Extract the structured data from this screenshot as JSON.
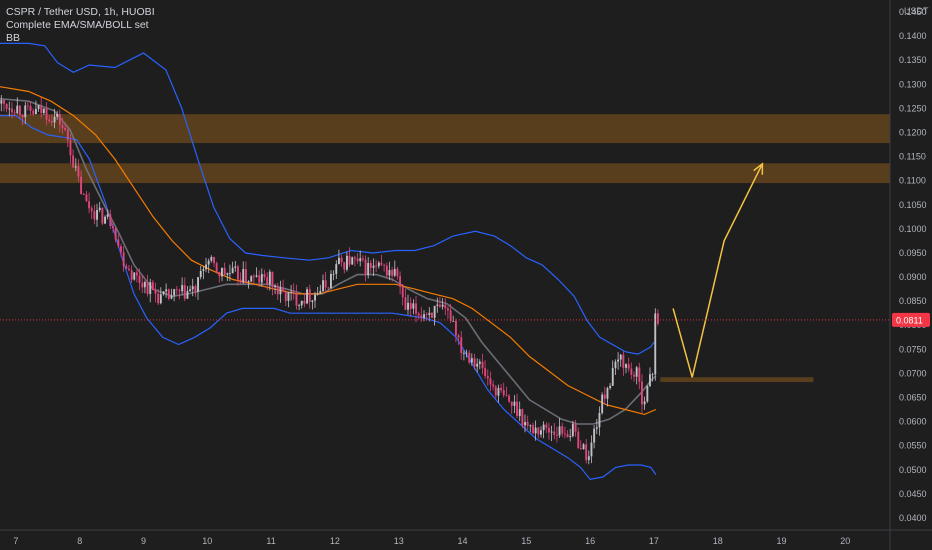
{
  "header": {
    "symbol_line": "CSPR / Tether USD, 1h, HUOBI",
    "indicator_line": "Complete EMA/SMA/BOLL set",
    "bb_line": "BB"
  },
  "price_axis": {
    "currency": "USDT",
    "last_price_label": "0.0811"
  },
  "colors": {
    "background": "#1e1e1e",
    "up_candle": "#c0c0c8",
    "down_candle": "#e0457b",
    "bollinger": "#2962ff",
    "ema_orange": "#f57c00",
    "sma_gray": "#787b86",
    "zone": "#8b5a1e",
    "forecast_arrow": "#f5c242",
    "last_price": "#f23645"
  },
  "chart_data": {
    "type": "candlestick",
    "title": "CSPR / Tether USD, 1h, HUOBI",
    "xlabel": "",
    "ylabel": "USDT",
    "ylim": [
      0.0375,
      0.1475
    ],
    "xlim": [
      6.75,
      20.7
    ],
    "x_ticks": [
      "7",
      "8",
      "9",
      "10",
      "11",
      "12",
      "13",
      "14",
      "15",
      "16",
      "17",
      "18",
      "19",
      "20"
    ],
    "y_ticks": [
      "0.0400",
      "0.0450",
      "0.0500",
      "0.0550",
      "0.0600",
      "0.0650",
      "0.0700",
      "0.0750",
      "0.0800",
      "0.0850",
      "0.0900",
      "0.0950",
      "0.1000",
      "0.1050",
      "0.1100",
      "0.1150",
      "0.1200",
      "0.1250",
      "0.1300",
      "0.1350",
      "0.1400",
      "0.1450"
    ],
    "grid": false,
    "price_path": [
      [
        6.75,
        0.126
      ],
      [
        7.0,
        0.1255
      ],
      [
        7.2,
        0.124
      ],
      [
        7.45,
        0.1245
      ],
      [
        7.7,
        0.1225
      ],
      [
        7.85,
        0.118
      ],
      [
        7.95,
        0.112
      ],
      [
        8.1,
        0.1055
      ],
      [
        8.3,
        0.103
      ],
      [
        8.55,
        0.1015
      ],
      [
        8.65,
        0.095
      ],
      [
        8.85,
        0.0905
      ],
      [
        9.05,
        0.0885
      ],
      [
        9.3,
        0.0855
      ],
      [
        9.6,
        0.0865
      ],
      [
        9.85,
        0.0875
      ],
      [
        10.0,
        0.0935
      ],
      [
        10.2,
        0.091
      ],
      [
        10.45,
        0.0905
      ],
      [
        10.75,
        0.0895
      ],
      [
        11.0,
        0.0895
      ],
      [
        11.15,
        0.0865
      ],
      [
        11.45,
        0.0855
      ],
      [
        11.7,
        0.0865
      ],
      [
        11.9,
        0.0885
      ],
      [
        12.05,
        0.0925
      ],
      [
        12.25,
        0.0935
      ],
      [
        12.5,
        0.092
      ],
      [
        12.8,
        0.0915
      ],
      [
        13.0,
        0.0905
      ],
      [
        13.1,
        0.0835
      ],
      [
        13.35,
        0.0825
      ],
      [
        13.6,
        0.083
      ],
      [
        13.85,
        0.082
      ],
      [
        14.0,
        0.0755
      ],
      [
        14.25,
        0.0725
      ],
      [
        14.45,
        0.068
      ],
      [
        14.7,
        0.0645
      ],
      [
        14.9,
        0.0625
      ],
      [
        15.05,
        0.0585
      ],
      [
        15.3,
        0.0585
      ],
      [
        15.55,
        0.058
      ],
      [
        15.75,
        0.058
      ],
      [
        15.9,
        0.0545
      ],
      [
        16.0,
        0.0525
      ],
      [
        16.1,
        0.059
      ],
      [
        16.25,
        0.066
      ],
      [
        16.4,
        0.0705
      ],
      [
        16.5,
        0.0735
      ],
      [
        16.6,
        0.071
      ],
      [
        16.75,
        0.0695
      ],
      [
        16.85,
        0.0645
      ],
      [
        16.95,
        0.068
      ],
      [
        17.0,
        0.0705
      ],
      [
        17.03,
        0.0845
      ],
      [
        17.06,
        0.0811
      ]
    ],
    "series": [
      {
        "type": "line",
        "points": [
          [
            6.75,
            0.1385
          ],
          [
            7.2,
            0.1385
          ],
          [
            7.45,
            0.138
          ],
          [
            7.65,
            0.1345
          ],
          [
            7.9,
            0.1325
          ],
          [
            8.15,
            0.134
          ],
          [
            8.55,
            0.1335
          ],
          [
            9.0,
            0.1365
          ],
          [
            9.35,
            0.133
          ],
          [
            9.6,
            0.125
          ],
          [
            9.85,
            0.1145
          ],
          [
            10.1,
            0.1045
          ],
          [
            10.35,
            0.098
          ],
          [
            10.6,
            0.095
          ],
          [
            10.85,
            0.0945
          ],
          [
            11.2,
            0.094
          ],
          [
            11.6,
            0.0935
          ],
          [
            11.9,
            0.094
          ],
          [
            12.25,
            0.0955
          ],
          [
            12.6,
            0.095
          ],
          [
            12.95,
            0.0955
          ],
          [
            13.25,
            0.0955
          ],
          [
            13.55,
            0.0965
          ],
          [
            13.85,
            0.0985
          ],
          [
            14.2,
            0.0995
          ],
          [
            14.5,
            0.0985
          ],
          [
            14.75,
            0.0965
          ],
          [
            15.0,
            0.094
          ],
          [
            15.25,
            0.0925
          ],
          [
            15.5,
            0.0895
          ],
          [
            15.75,
            0.086
          ],
          [
            15.95,
            0.081
          ],
          [
            16.15,
            0.0775
          ],
          [
            16.35,
            0.076
          ],
          [
            16.55,
            0.0745
          ],
          [
            16.75,
            0.074
          ],
          [
            16.95,
            0.0755
          ],
          [
            17.0,
            0.0765
          ]
        ]
      },
      {
        "type": "line",
        "points": [
          [
            6.75,
            0.1235
          ],
          [
            7.0,
            0.1235
          ],
          [
            7.25,
            0.121
          ],
          [
            7.5,
            0.1195
          ],
          [
            7.75,
            0.119
          ],
          [
            7.95,
            0.1185
          ],
          [
            8.15,
            0.1145
          ],
          [
            8.4,
            0.1055
          ],
          [
            8.65,
            0.0945
          ],
          [
            8.85,
            0.0865
          ],
          [
            9.05,
            0.0815
          ],
          [
            9.3,
            0.0775
          ],
          [
            9.55,
            0.076
          ],
          [
            9.8,
            0.0775
          ],
          [
            10.05,
            0.0795
          ],
          [
            10.3,
            0.0825
          ],
          [
            10.55,
            0.0835
          ],
          [
            10.8,
            0.0835
          ],
          [
            11.05,
            0.0835
          ],
          [
            11.3,
            0.0825
          ],
          [
            11.55,
            0.0825
          ],
          [
            11.8,
            0.0825
          ],
          [
            12.05,
            0.0825
          ],
          [
            12.35,
            0.0825
          ],
          [
            12.65,
            0.0825
          ],
          [
            12.9,
            0.0825
          ],
          [
            13.15,
            0.082
          ],
          [
            13.4,
            0.0815
          ],
          [
            13.65,
            0.0805
          ],
          [
            13.9,
            0.0775
          ],
          [
            14.15,
            0.072
          ],
          [
            14.4,
            0.0665
          ],
          [
            14.65,
            0.0625
          ],
          [
            14.9,
            0.0595
          ],
          [
            15.15,
            0.0565
          ],
          [
            15.4,
            0.0545
          ],
          [
            15.65,
            0.0525
          ],
          [
            15.85,
            0.0505
          ],
          [
            16.0,
            0.048
          ],
          [
            16.2,
            0.0485
          ],
          [
            16.4,
            0.0505
          ],
          [
            16.6,
            0.051
          ],
          [
            16.8,
            0.051
          ],
          [
            16.95,
            0.0505
          ],
          [
            17.03,
            0.049
          ]
        ]
      },
      {
        "type": "line",
        "points": [
          [
            6.75,
            0.127
          ],
          [
            7.2,
            0.1265
          ],
          [
            7.6,
            0.1245
          ],
          [
            7.85,
            0.1205
          ],
          [
            8.1,
            0.1125
          ],
          [
            8.4,
            0.1045
          ],
          [
            8.6,
            0.0995
          ],
          [
            8.85,
            0.0925
          ],
          [
            9.15,
            0.0875
          ],
          [
            9.45,
            0.086
          ],
          [
            9.7,
            0.0865
          ],
          [
            10.0,
            0.0875
          ],
          [
            10.3,
            0.0885
          ],
          [
            10.6,
            0.0885
          ],
          [
            10.95,
            0.0885
          ],
          [
            11.25,
            0.0875
          ],
          [
            11.5,
            0.0865
          ],
          [
            11.8,
            0.0865
          ],
          [
            12.05,
            0.0885
          ],
          [
            12.35,
            0.0905
          ],
          [
            12.65,
            0.0905
          ],
          [
            12.9,
            0.0895
          ],
          [
            13.15,
            0.0875
          ],
          [
            13.45,
            0.0855
          ],
          [
            13.75,
            0.0845
          ],
          [
            14.05,
            0.0815
          ],
          [
            14.3,
            0.0765
          ],
          [
            14.55,
            0.0725
          ],
          [
            14.8,
            0.0685
          ],
          [
            15.05,
            0.0645
          ],
          [
            15.3,
            0.0625
          ],
          [
            15.55,
            0.0605
          ],
          [
            15.8,
            0.0595
          ],
          [
            16.05,
            0.0595
          ],
          [
            16.3,
            0.0605
          ],
          [
            16.55,
            0.0625
          ],
          [
            16.8,
            0.066
          ],
          [
            16.95,
            0.0685
          ],
          [
            17.03,
            0.0695
          ]
        ]
      },
      {
        "type": "line",
        "points": [
          [
            6.75,
            0.1295
          ],
          [
            7.2,
            0.1285
          ],
          [
            7.55,
            0.1265
          ],
          [
            7.9,
            0.1235
          ],
          [
            8.25,
            0.1195
          ],
          [
            8.55,
            0.1145
          ],
          [
            8.85,
            0.1085
          ],
          [
            9.15,
            0.1025
          ],
          [
            9.45,
            0.0975
          ],
          [
            9.75,
            0.0935
          ],
          [
            10.05,
            0.0915
          ],
          [
            10.4,
            0.0895
          ],
          [
            10.75,
            0.0885
          ],
          [
            11.05,
            0.0875
          ],
          [
            11.4,
            0.0865
          ],
          [
            11.75,
            0.0865
          ],
          [
            12.05,
            0.0875
          ],
          [
            12.35,
            0.0885
          ],
          [
            12.65,
            0.0885
          ],
          [
            12.95,
            0.0885
          ],
          [
            13.25,
            0.0875
          ],
          [
            13.55,
            0.0865
          ],
          [
            13.85,
            0.0855
          ],
          [
            14.15,
            0.0835
          ],
          [
            14.45,
            0.0805
          ],
          [
            14.75,
            0.0775
          ],
          [
            15.05,
            0.0735
          ],
          [
            15.35,
            0.0705
          ],
          [
            15.65,
            0.0675
          ],
          [
            15.95,
            0.0655
          ],
          [
            16.25,
            0.0635
          ],
          [
            16.55,
            0.0625
          ],
          [
            16.85,
            0.0615
          ],
          [
            17.03,
            0.0625
          ]
        ]
      }
    ],
    "horizontal_zones": [
      {
        "from": 0.1178,
        "to": 0.1238,
        "x_start": 6.75,
        "x_end": 20.7
      },
      {
        "from": 0.1095,
        "to": 0.1136,
        "x_start": 6.75,
        "x_end": 20.7
      },
      {
        "from": 0.0682,
        "to": 0.0692,
        "x_start": 17.1,
        "x_end": 19.5
      }
    ],
    "forecast_arrow": [
      [
        17.3,
        0.0835
      ],
      [
        17.6,
        0.0692
      ],
      [
        18.1,
        0.0975
      ],
      [
        18.7,
        0.1135
      ]
    ],
    "last_price": 0.0811
  }
}
